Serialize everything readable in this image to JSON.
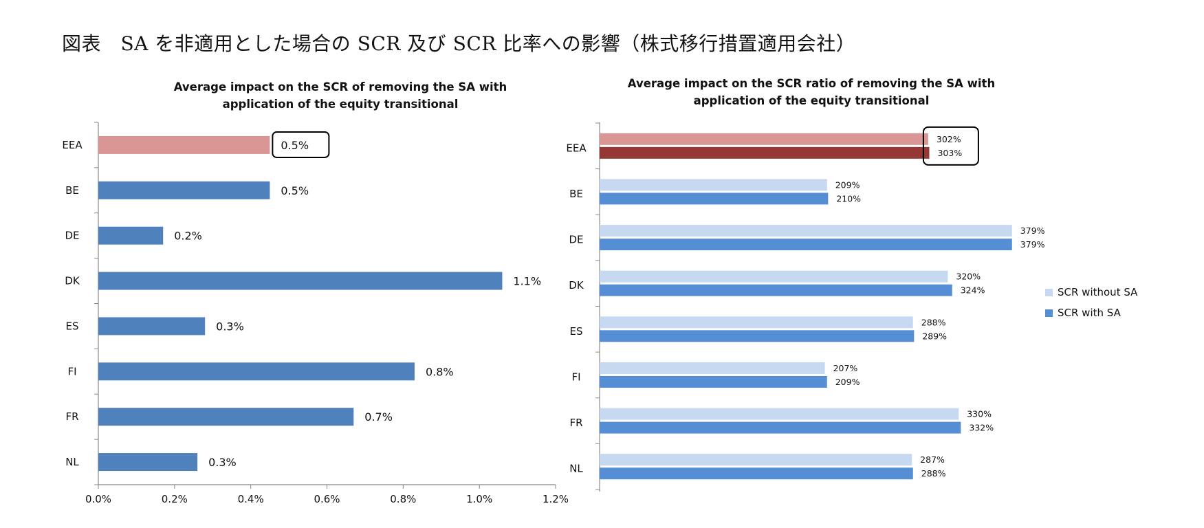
{
  "figure_title": "図表　SA を非適用とした場合の SCR 及び SCR 比率への影響（株式移行措置適用会社）",
  "colors": {
    "highlight": "#D99694",
    "bar": "#4F81BD",
    "without": "#C6D9F1",
    "with": "#558ED5",
    "eea_without": "#D99694",
    "eea_with": "#953735"
  },
  "chart_data": [
    {
      "type": "bar",
      "orientation": "horizontal",
      "title_lines": [
        "Average impact on the SCR of removing the SA with",
        "application of the equity transitional"
      ],
      "categories": [
        "EEA",
        "BE",
        "DE",
        "DK",
        "ES",
        "FI",
        "FR",
        "NL"
      ],
      "values": [
        0.45,
        0.45,
        0.17,
        1.06,
        0.28,
        0.83,
        0.67,
        0.26
      ],
      "value_labels": [
        "0.5%",
        "0.5%",
        "0.2%",
        "1.1%",
        "0.3%",
        "0.8%",
        "0.7%",
        "0.3%"
      ],
      "xlim": [
        0,
        1.2
      ],
      "xticks": [
        "0.0%",
        "0.2%",
        "0.4%",
        "0.6%",
        "0.8%",
        "1.0%",
        "1.2%"
      ],
      "highlighted_category": "EEA",
      "boxed_label": "EEA"
    },
    {
      "type": "bar",
      "orientation": "horizontal",
      "title_lines": [
        "Average impact on the SCR ratio of removing the SA with",
        "application of the equity transitional"
      ],
      "categories": [
        "EEA",
        "BE",
        "DE",
        "DK",
        "ES",
        "FI",
        "FR",
        "NL"
      ],
      "series": [
        {
          "name": "SCR without SA",
          "values": [
            302,
            209,
            379,
            320,
            288,
            207,
            330,
            287
          ],
          "labels": [
            "302%",
            "209%",
            "379%",
            "320%",
            "288%",
            "207%",
            "330%",
            "287%"
          ]
        },
        {
          "name": "SCR with SA",
          "values": [
            303,
            210,
            379,
            324,
            289,
            209,
            332,
            288
          ],
          "labels": [
            "303%",
            "210%",
            "379%",
            "324%",
            "289%",
            "209%",
            "332%",
            "288%"
          ]
        }
      ],
      "xlim": [
        0,
        400
      ],
      "legend_position": "right",
      "highlighted_category": "EEA",
      "boxed_label": "EEA"
    }
  ]
}
